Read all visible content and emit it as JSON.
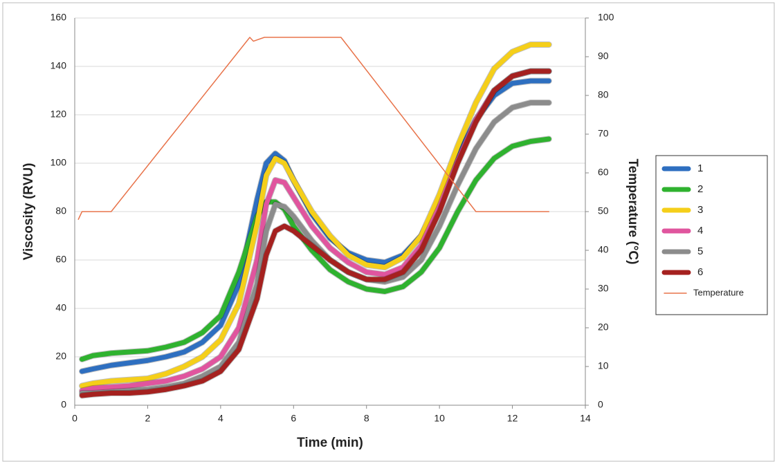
{
  "chart_data": {
    "type": "line",
    "x_label": "Time (min)",
    "y_label": "Viscosity (RVU)",
    "y2_label": "Temperature (°C)",
    "x": [
      0.2,
      0.5,
      1,
      1.5,
      2,
      2.5,
      3,
      3.5,
      4,
      4.5,
      5,
      5.25,
      5.5,
      5.75,
      6,
      6.5,
      7,
      7.5,
      8,
      8.5,
      9,
      9.5,
      10,
      10.5,
      11,
      11.5,
      12,
      12.5,
      13
    ],
    "xlim": [
      0,
      14
    ],
    "xticks": [
      0,
      2,
      4,
      6,
      8,
      10,
      12,
      14
    ],
    "ylim": [
      0,
      160
    ],
    "yticks": [
      0,
      20,
      40,
      60,
      80,
      100,
      120,
      140,
      160
    ],
    "y2lim": [
      0,
      100
    ],
    "y2ticks": [
      0,
      10,
      20,
      30,
      40,
      50,
      60,
      70,
      80,
      90,
      100
    ],
    "grid": true,
    "legend": "right",
    "series": [
      {
        "name": "1",
        "color": "#2e6fc0",
        "values": [
          14,
          15,
          16.5,
          17.5,
          18.5,
          20,
          22,
          26,
          33,
          50,
          85,
          100,
          104,
          101,
          93,
          79,
          69,
          63,
          60,
          59,
          62,
          70,
          85,
          103,
          118,
          128,
          133,
          134,
          134
        ]
      },
      {
        "name": "2",
        "color": "#2fb22f",
        "values": [
          19,
          20.5,
          21.5,
          22,
          22.5,
          24,
          26,
          30,
          37,
          55,
          78,
          84,
          84,
          81,
          74,
          64,
          56,
          51,
          48,
          47,
          49,
          55,
          65,
          80,
          93,
          102,
          107,
          109,
          110
        ]
      },
      {
        "name": "3",
        "color": "#f5cf1a",
        "values": [
          8,
          9,
          10,
          10.5,
          11,
          13,
          16,
          20,
          27,
          42,
          75,
          95,
          102,
          100,
          93,
          80,
          70,
          62,
          58,
          57,
          61,
          70,
          87,
          107,
          125,
          139,
          146,
          149,
          149
        ]
      },
      {
        "name": "4",
        "color": "#e0559e",
        "values": [
          6,
          7,
          7.5,
          8,
          9,
          10,
          12,
          15,
          20,
          32,
          60,
          83,
          93,
          92,
          86,
          74,
          65,
          59,
          55,
          54,
          57,
          66,
          82,
          101,
          118,
          130,
          136,
          138,
          138
        ]
      },
      {
        "name": "5",
        "color": "#8c8c8c",
        "values": [
          5,
          5,
          5.5,
          6,
          6.5,
          7.5,
          9,
          12,
          16,
          26,
          50,
          72,
          83,
          82,
          78,
          68,
          60,
          55,
          52,
          51,
          53,
          60,
          74,
          91,
          106,
          117,
          123,
          125,
          125
        ]
      },
      {
        "name": "6",
        "color": "#a5211f",
        "values": [
          4,
          4.5,
          5,
          5,
          5.5,
          6.5,
          8,
          10,
          14,
          23,
          44,
          62,
          72,
          74,
          72,
          66,
          60,
          55,
          52,
          52,
          55,
          64,
          80,
          100,
          117,
          130,
          136,
          138,
          138
        ]
      },
      {
        "name": "Temperature",
        "color": "#e8734a",
        "axis": "y2",
        "x": [
          0.1,
          0.2,
          1,
          4.8,
          4.9,
          5.2,
          7.3,
          11,
          13
        ],
        "values": [
          48,
          50,
          50,
          95,
          94,
          95,
          95,
          50,
          50
        ]
      }
    ]
  }
}
